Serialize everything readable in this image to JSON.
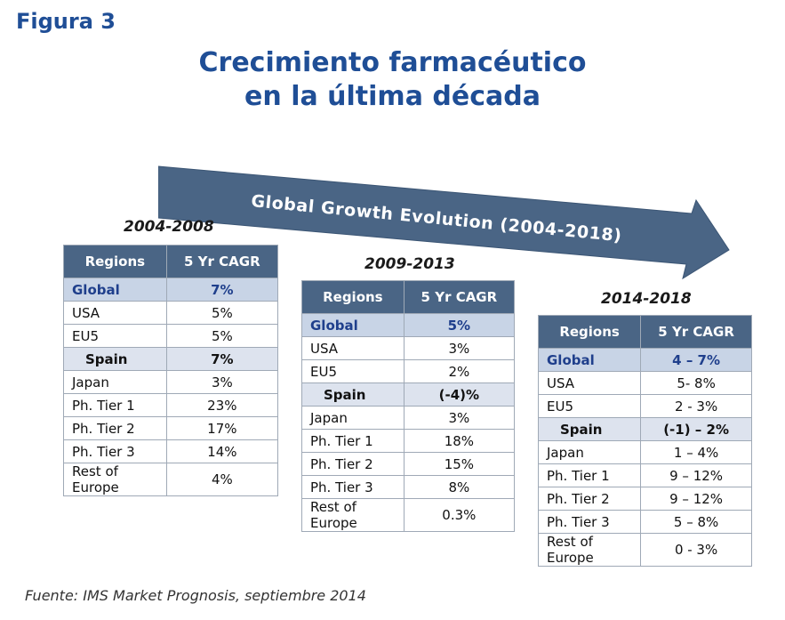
{
  "figure_label": "Figura 3",
  "title_line1": "Crecimiento farmacéutico",
  "title_line2": "en la última década",
  "arrow_text": "Global Growth Evolution (2004-2018)",
  "source": "Fuente: IMS Market Prognosis, septiembre 2014",
  "colors": {
    "title": "#1f4e96",
    "header_bg": "#4a6585",
    "global_bg": "#c8d4e6",
    "spain_bg": "#dde3ee",
    "arrow": "#4a6585"
  },
  "tables": [
    {
      "period": "2004-2008",
      "header": [
        "Regions",
        "5 Yr CAGR"
      ],
      "rows": [
        [
          "Global",
          "7%"
        ],
        [
          "USA",
          "5%"
        ],
        [
          "EU5",
          "5%"
        ],
        [
          "Spain",
          "7%"
        ],
        [
          "Japan",
          "3%"
        ],
        [
          "Ph. Tier 1",
          "23%"
        ],
        [
          "Ph. Tier 2",
          "17%"
        ],
        [
          "Ph. Tier 3",
          "14%"
        ],
        [
          "Rest of Europe",
          "4%"
        ]
      ]
    },
    {
      "period": "2009-2013",
      "header": [
        "Regions",
        "5 Yr CAGR"
      ],
      "rows": [
        [
          "Global",
          "5%"
        ],
        [
          "USA",
          "3%"
        ],
        [
          "EU5",
          "2%"
        ],
        [
          "Spain",
          "(-4)%"
        ],
        [
          "Japan",
          "3%"
        ],
        [
          "Ph. Tier 1",
          "18%"
        ],
        [
          "Ph. Tier 2",
          "15%"
        ],
        [
          "Ph. Tier 3",
          "8%"
        ],
        [
          "Rest of Europe",
          "0.3%"
        ]
      ]
    },
    {
      "period": "2014-2018",
      "header": [
        "Regions",
        "5 Yr CAGR"
      ],
      "rows": [
        [
          "Global",
          "4 – 7%"
        ],
        [
          "USA",
          "5- 8%"
        ],
        [
          "EU5",
          "2 - 3%"
        ],
        [
          "Spain",
          "(-1) – 2%"
        ],
        [
          "Japan",
          "1 – 4%"
        ],
        [
          "Ph. Tier 1",
          "9 – 12%"
        ],
        [
          "Ph. Tier 2",
          "9 – 12%"
        ],
        [
          "Ph. Tier 3",
          "5 – 8%"
        ],
        [
          "Rest of Europe",
          "0 - 3%"
        ]
      ]
    }
  ]
}
